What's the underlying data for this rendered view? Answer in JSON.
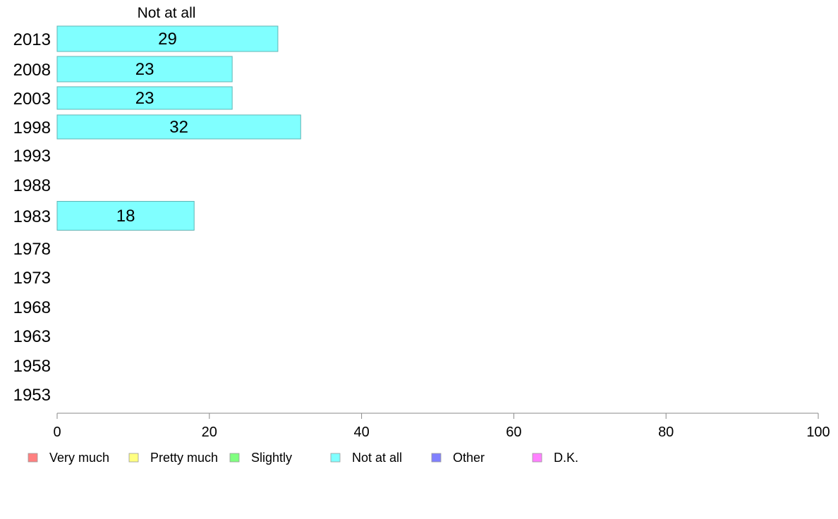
{
  "chart_data": {
    "type": "bar",
    "orientation": "horizontal",
    "column_header": "Not at all",
    "categories": [
      "2013",
      "2008",
      "2003",
      "1998",
      "1993",
      "1988",
      "1983",
      "1978",
      "1973",
      "1968",
      "1963",
      "1958",
      "1953"
    ],
    "series": [
      {
        "name": "Not at all",
        "color": "#80ffff",
        "values": [
          29,
          23,
          23,
          32,
          null,
          null,
          18,
          null,
          null,
          null,
          null,
          null,
          null
        ]
      }
    ],
    "xlim": [
      0,
      100
    ],
    "xticks": [
      "0",
      "20",
      "40",
      "60",
      "80",
      "100"
    ],
    "grid": false,
    "legend_position": "bottom",
    "legend": [
      {
        "label": "Very much",
        "color": "#ff8080"
      },
      {
        "label": "Pretty much",
        "color": "#ffff80"
      },
      {
        "label": "Slightly",
        "color": "#80ff80"
      },
      {
        "label": "Not at all",
        "color": "#80ffff"
      },
      {
        "label": "Other",
        "color": "#8080ff"
      },
      {
        "label": "D.K.",
        "color": "#ff80ff"
      }
    ]
  }
}
